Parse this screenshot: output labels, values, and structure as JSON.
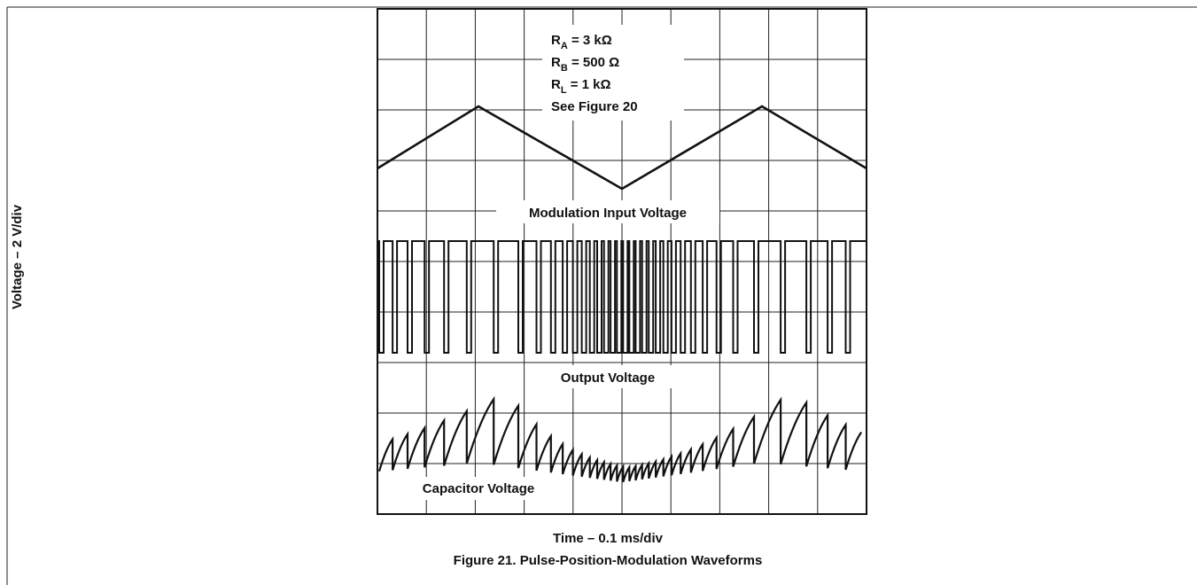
{
  "figure": {
    "conditions": [
      {
        "symbol": "R",
        "subscript": "A",
        "rest": " = 3 kΩ"
      },
      {
        "symbol": "R",
        "subscript": "B",
        "rest": " = 500 Ω"
      },
      {
        "symbol": "R",
        "subscript": "L",
        "rest": " = 1 kΩ"
      },
      {
        "text": "See Figure 20"
      }
    ],
    "trace_labels": [
      "Modulation Input Voltage",
      "Output Voltage",
      "Capacitor Voltage"
    ],
    "y_label": "Voltage – 2 V/div",
    "x_label": "Time – 0.1 ms/div",
    "caption": "Figure 21. Pulse-Position-Modulation Waveforms"
  }
}
